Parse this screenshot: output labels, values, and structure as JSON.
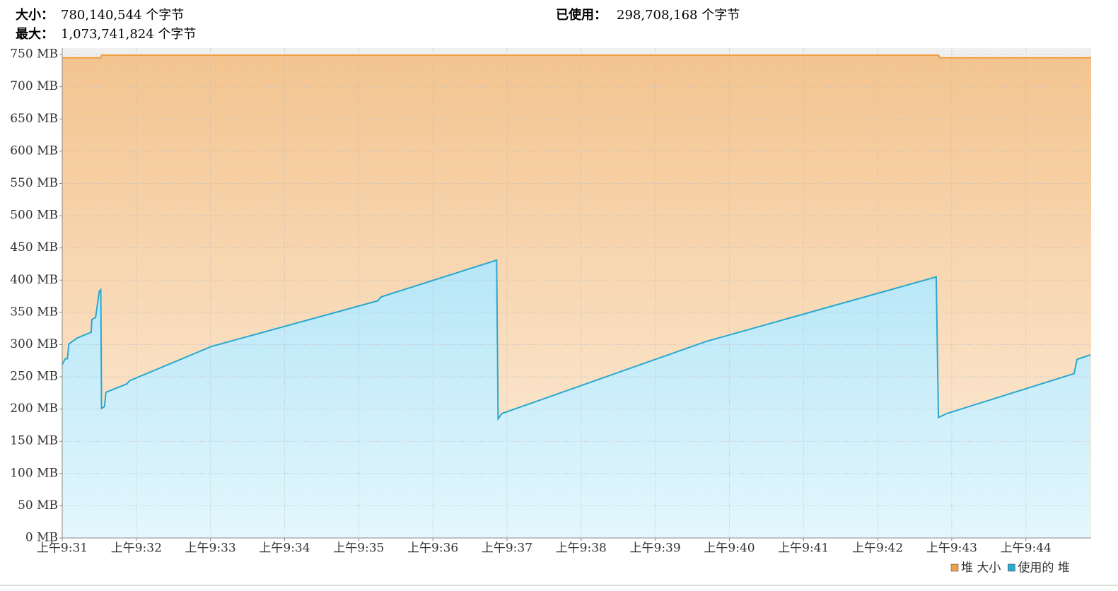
{
  "chart_data": {
    "type": "area",
    "stats": [
      {
        "label": "大小：",
        "value": "780,140,544 个字节"
      },
      {
        "label": "已使用：",
        "value": "298,708,168 个字节"
      },
      {
        "label": "最大：",
        "value": "1,073,741,824 个字节"
      }
    ],
    "series": [
      {
        "name": "堆 大小",
        "color": "#f0a040",
        "x": [
          571,
          571.52,
          571.53,
          582.82,
          582.84,
          584.88
        ],
        "values": [
          745,
          745,
          749,
          749,
          745,
          745
        ]
      },
      {
        "name": "使用的 堆",
        "color": "#2aa8d0",
        "x": [
          571,
          571.04,
          571.07,
          571.09,
          571.2,
          571.3,
          571.39,
          571.4,
          571.45,
          571.5,
          571.52,
          571.53,
          571.57,
          571.59,
          571.87,
          571.91,
          573.01,
          575.26,
          575.3,
          576.86,
          576.88,
          576.93,
          579.69,
          582.79,
          582.82,
          582.93,
          584.65,
          584.69,
          584.87
        ],
        "values": [
          269,
          278,
          278,
          301,
          310,
          315,
          319,
          339,
          342,
          383,
          385,
          201,
          204,
          226,
          239,
          244,
          297,
          368,
          374,
          431,
          185,
          193,
          305,
          405,
          187,
          193,
          255,
          277,
          284
        ]
      }
    ],
    "xlim": [
      571,
      584.88
    ],
    "xticks": [
      {
        "value": 571,
        "label": "上午9:31"
      },
      {
        "value": 572,
        "label": "上午9:32"
      },
      {
        "value": 573,
        "label": "上午9:33"
      },
      {
        "value": 574,
        "label": "上午9:34"
      },
      {
        "value": 575,
        "label": "上午9:35"
      },
      {
        "value": 576,
        "label": "上午9:36"
      },
      {
        "value": 577,
        "label": "上午9:37"
      },
      {
        "value": 578,
        "label": "上午9:38"
      },
      {
        "value": 579,
        "label": "上午9:39"
      },
      {
        "value": 580,
        "label": "上午9:40"
      },
      {
        "value": 581,
        "label": "上午9:41"
      },
      {
        "value": 582,
        "label": "上午9:42"
      },
      {
        "value": 583,
        "label": "上午9:43"
      },
      {
        "value": 584,
        "label": "上午9:44"
      }
    ],
    "ylim": [
      0,
      760
    ],
    "yticks": [
      {
        "value": 0,
        "label": "0 MB"
      },
      {
        "value": 50,
        "label": "50 MB"
      },
      {
        "value": 100,
        "label": "100 MB"
      },
      {
        "value": 150,
        "label": "150 MB"
      },
      {
        "value": 200,
        "label": "200 MB"
      },
      {
        "value": 250,
        "label": "250 MB"
      },
      {
        "value": 300,
        "label": "300 MB"
      },
      {
        "value": 350,
        "label": "350 MB"
      },
      {
        "value": 400,
        "label": "400 MB"
      },
      {
        "value": 450,
        "label": "450 MB"
      },
      {
        "value": 500,
        "label": "500 MB"
      },
      {
        "value": 550,
        "label": "550 MB"
      },
      {
        "value": 600,
        "label": "600 MB"
      },
      {
        "value": 650,
        "label": "650 MB"
      },
      {
        "value": 700,
        "label": "700 MB"
      },
      {
        "value": 750,
        "label": "750 MB"
      }
    ],
    "grid": true
  }
}
